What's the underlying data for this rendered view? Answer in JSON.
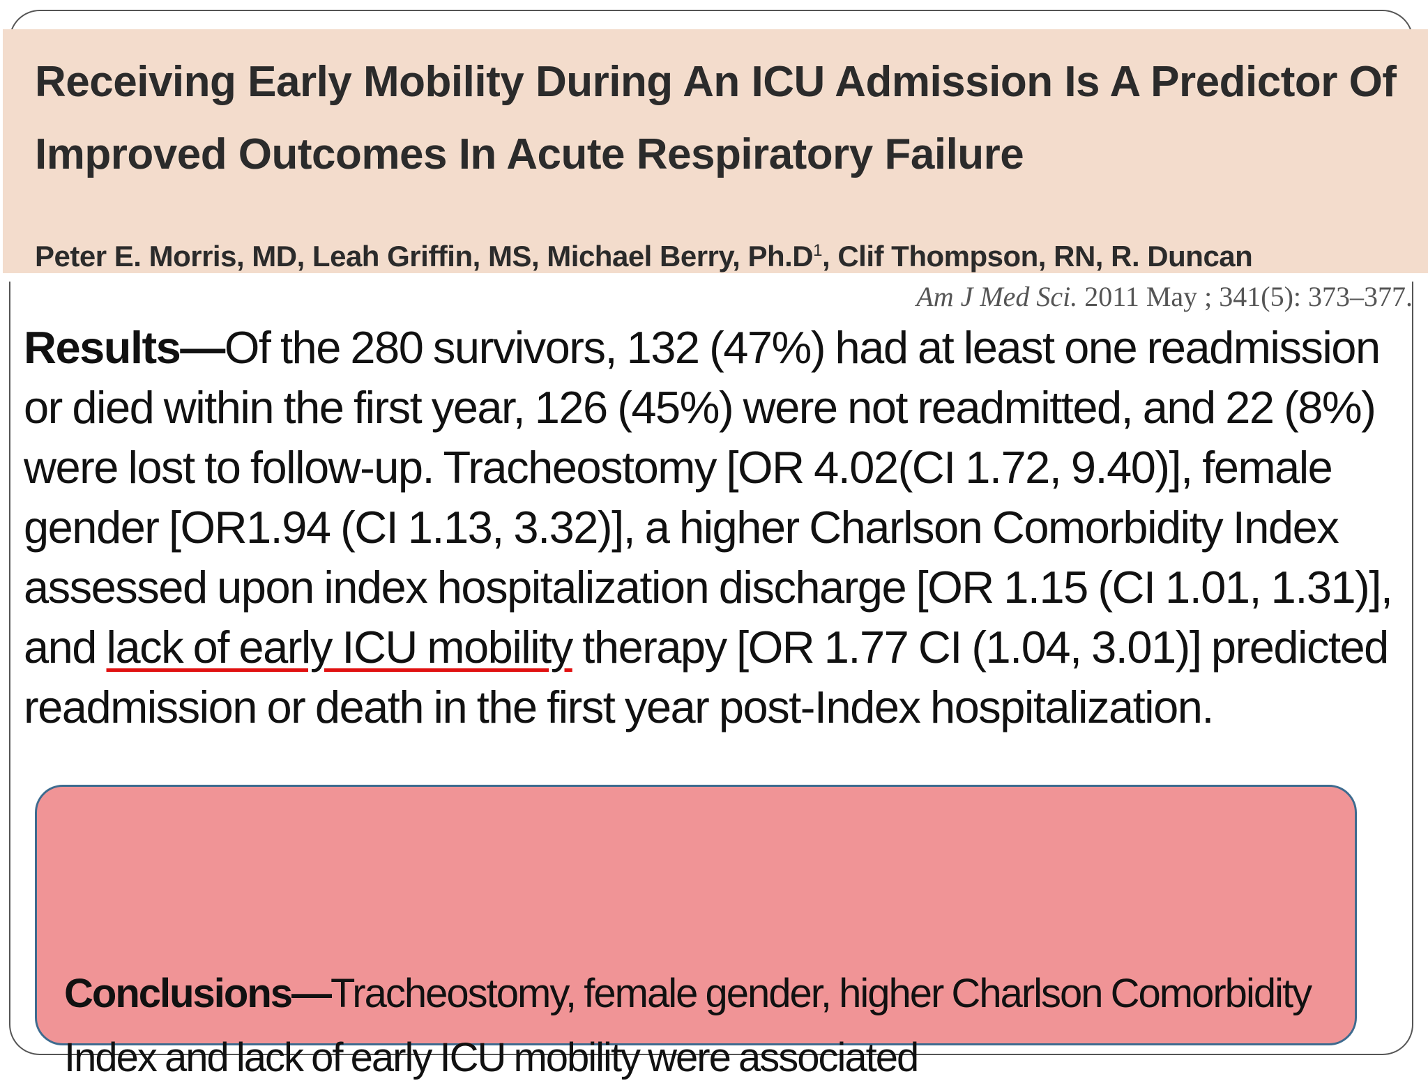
{
  "header": {
    "title": "Receiving Early Mobility During An ICU Admission Is A Predictor Of Improved Outcomes In Acute Respiratory Failure",
    "authors_main": "Peter E. Morris, MD, Leah Griffin, MS, Michael Berry, Ph.D",
    "authors_superscript": "1",
    "authors_rest": ", Clif Thompson, RN, R. Duncan",
    "citation_journal": "Am J Med Sci.",
    "citation_details": " 2011 May ; 341(5): 373–377."
  },
  "results": {
    "lead": "Results—",
    "text_before": "Of the 280 survivors, 132 (47%) had at least one readmission or died within the first year, 126 (45%) were not readmitted, and 22 (8%) were lost to follow-up. Tracheostomy [OR 4.02(CI 1.72, 9.40)], female gender [OR1.94 (CI 1.13, 3.32)], a higher Charlson Comorbidity Index assessed upon index hospitalization discharge [OR 1.15 (CI 1.01, 1.31)], and ",
    "highlighted": "lack of early ICU mobility",
    "text_after": " therapy [OR 1.77 CI (1.04, 3.01)] predicted readmission or death in the first year post-Index hospitalization."
  },
  "conclusions": {
    "lead": "Conclusions—",
    "text": "Tracheostomy, female gender, higher Charlson Comorbidity Index and lack of early ICU mobility were associated"
  },
  "colors": {
    "header_band": "#f3dccc",
    "conclusion_box": "#f09496",
    "conclusion_border": "#3d6b8f",
    "underline": "#e01010"
  }
}
